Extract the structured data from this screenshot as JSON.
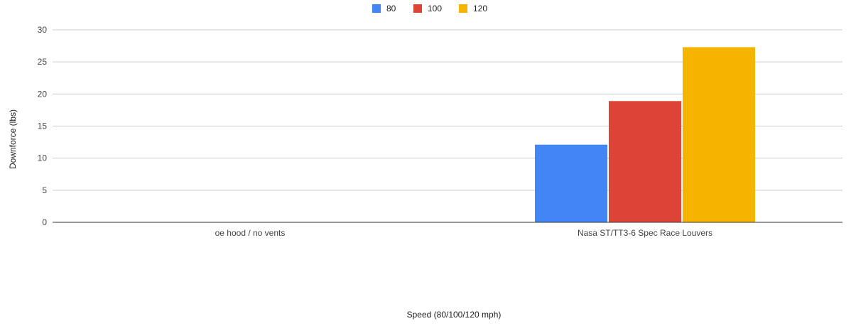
{
  "chart_data": {
    "type": "bar",
    "categories": [
      "oe hood / no vents",
      "Nasa ST/TT3-6 Spec Race Louvers"
    ],
    "series": [
      {
        "name": "80",
        "values": [
          0,
          12.1
        ],
        "color": "#4285f4"
      },
      {
        "name": "100",
        "values": [
          0,
          18.9
        ],
        "color": "#db4437"
      },
      {
        "name": "120",
        "values": [
          0,
          27.3
        ],
        "color": "#f4b400"
      }
    ],
    "title": "",
    "xlabel": "Speed (80/100/120 mph)",
    "ylabel": "Downforce (lbs)",
    "ylim": [
      0,
      30
    ],
    "yticks": [
      "0",
      "5",
      "10",
      "15",
      "20",
      "25",
      "30"
    ],
    "grid": true,
    "legend_position": "top-center"
  }
}
